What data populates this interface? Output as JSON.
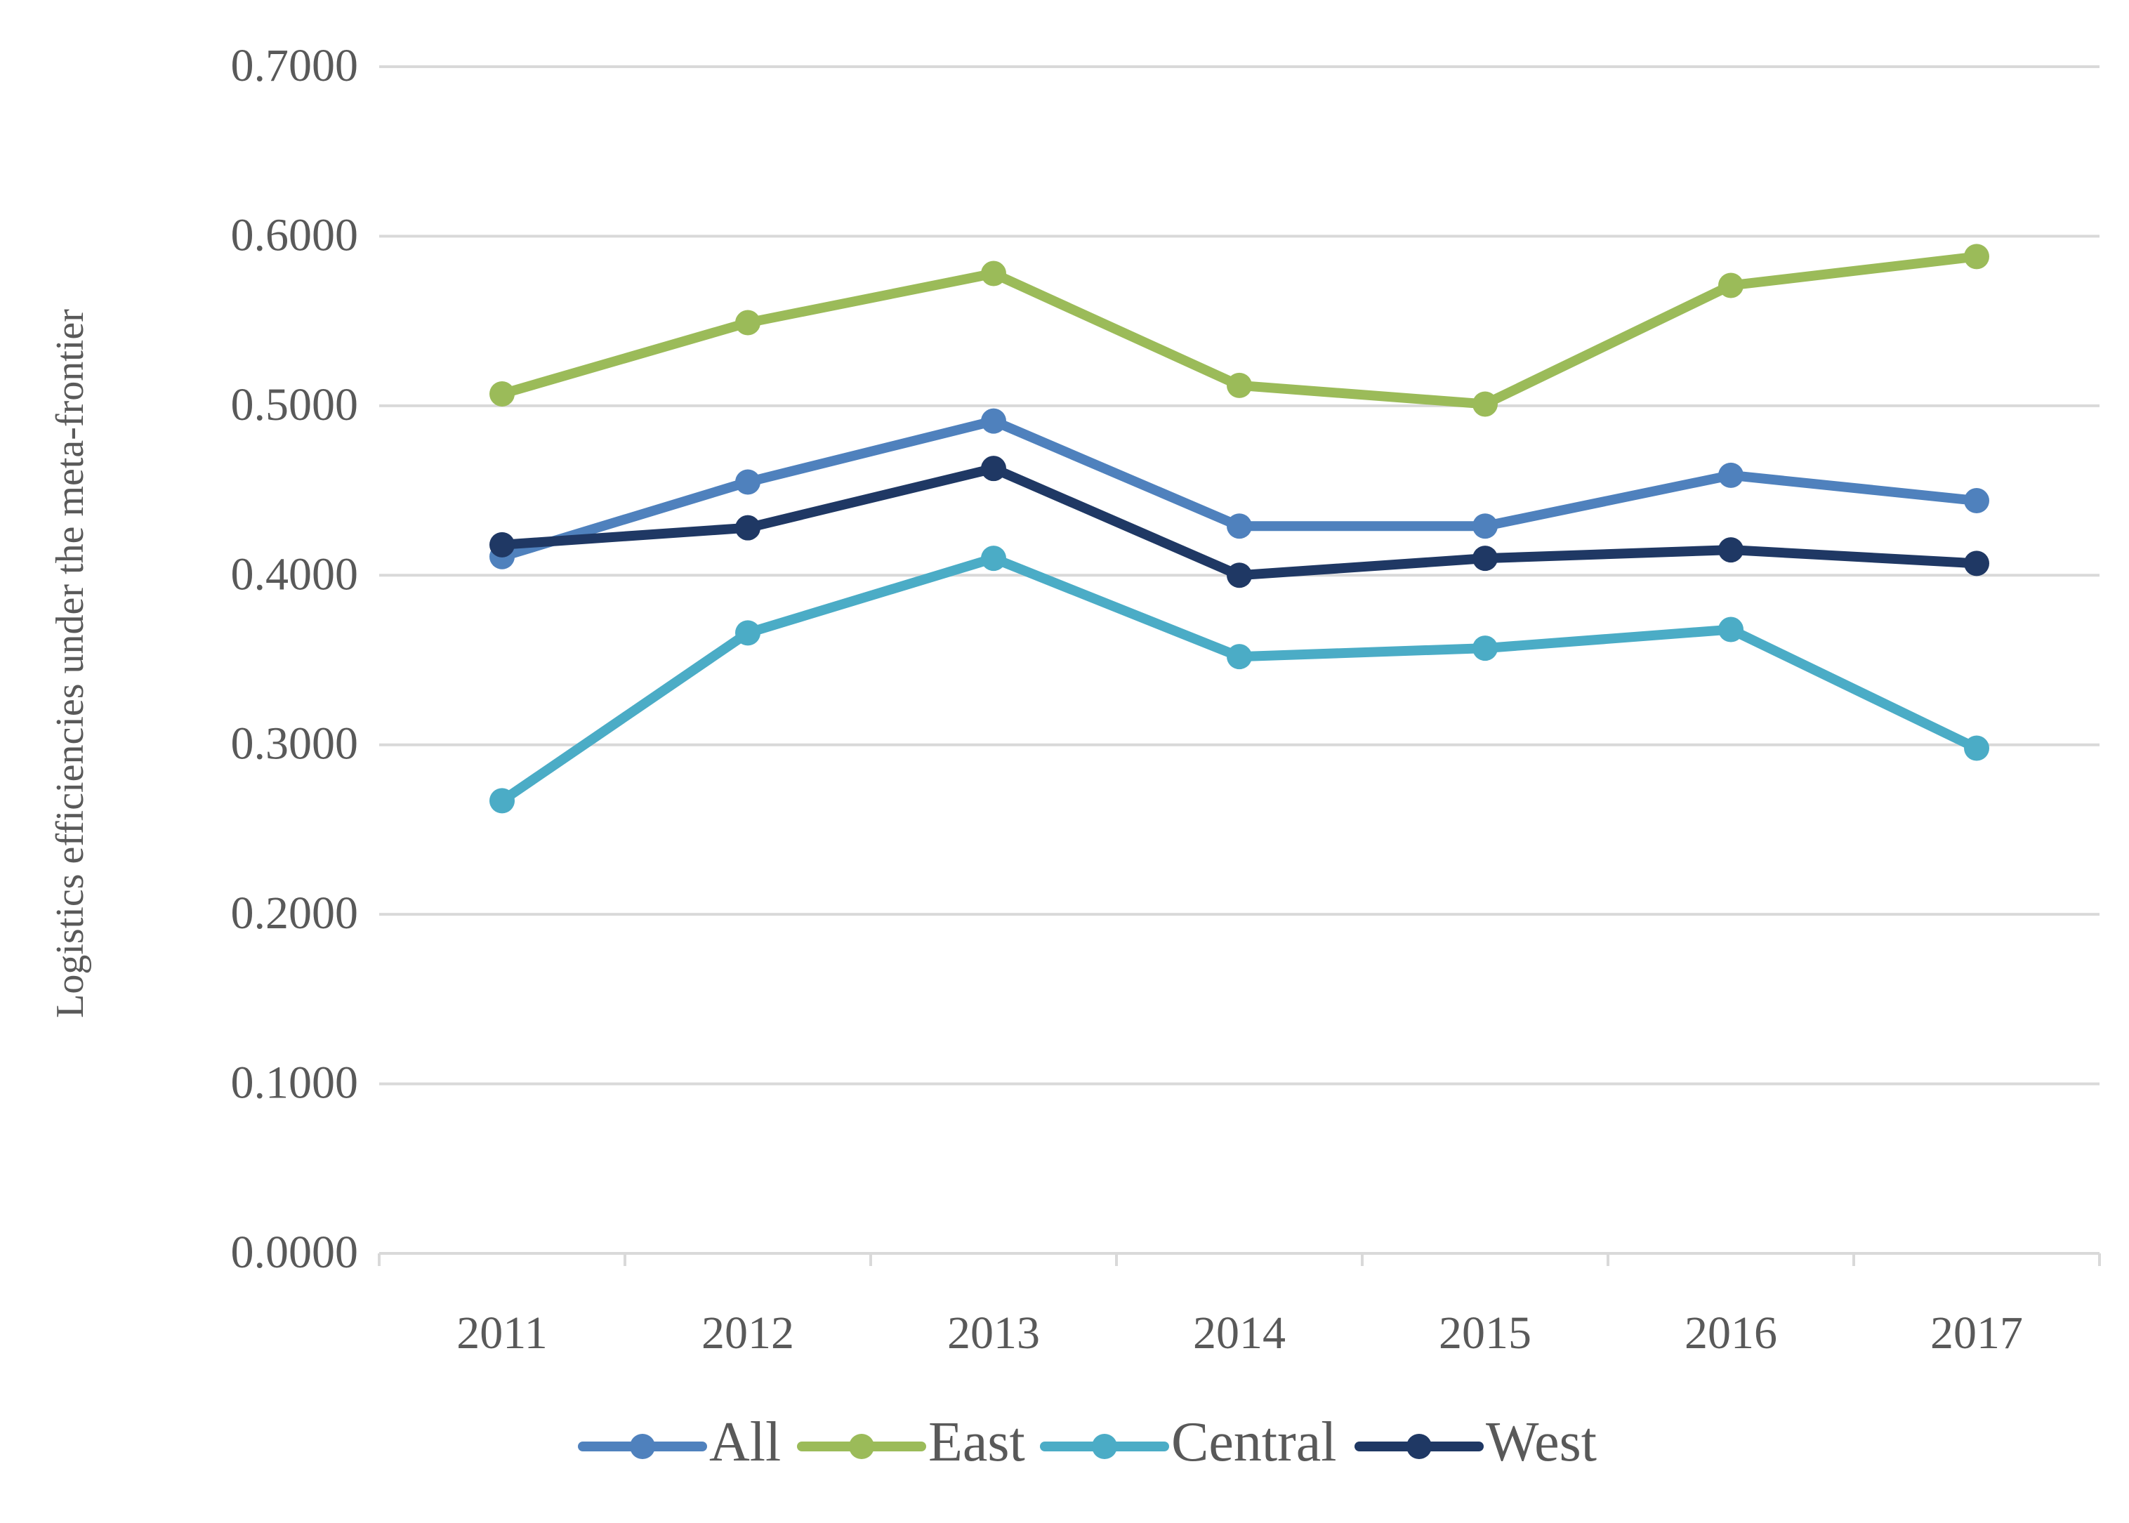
{
  "chart_data": {
    "type": "line",
    "title": "",
    "xlabel": "",
    "ylabel": "Logistics efficiencies under the meta-frontier",
    "categories": [
      "2011",
      "2012",
      "2013",
      "2014",
      "2015",
      "2016",
      "2017"
    ],
    "ylim": [
      0,
      0.7
    ],
    "yticks": [
      "0.0000",
      "0.1000",
      "0.2000",
      "0.3000",
      "0.4000",
      "0.5000",
      "0.6000",
      "0.7000"
    ],
    "grid": true,
    "legend_position": "bottom",
    "series": [
      {
        "name": "All",
        "color": "#4F81BD",
        "values": [
          0.411,
          0.455,
          0.491,
          0.429,
          0.429,
          0.459,
          0.444
        ]
      },
      {
        "name": "East",
        "color": "#9BBB59",
        "values": [
          0.507,
          0.549,
          0.578,
          0.512,
          0.501,
          0.571,
          0.588
        ]
      },
      {
        "name": "Central",
        "color": "#4BACC6",
        "values": [
          0.267,
          0.366,
          0.41,
          0.352,
          0.357,
          0.368,
          0.298
        ]
      },
      {
        "name": "West",
        "color": "#1F3864",
        "values": [
          0.418,
          0.428,
          0.463,
          0.4,
          0.41,
          0.415,
          0.407
        ]
      }
    ]
  }
}
